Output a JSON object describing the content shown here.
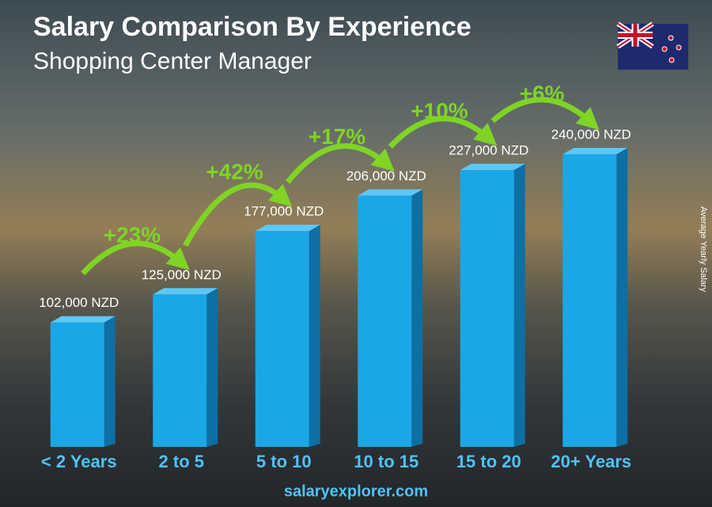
{
  "chart_data": {
    "type": "bar",
    "title": "Salary Comparison By Experience",
    "subtitle": "Shopping Center Manager",
    "y_label": "Average Yearly Salary",
    "categories": [
      "< 2 Years",
      "2 to 5",
      "5 to 10",
      "10 to 15",
      "15 to 20",
      "20+ Years"
    ],
    "values": [
      102000,
      125000,
      177000,
      206000,
      227000,
      240000
    ],
    "value_labels": [
      "102,000 NZD",
      "125,000 NZD",
      "177,000 NZD",
      "206,000 NZD",
      "227,000 NZD",
      "240,000 NZD"
    ],
    "annotations": [
      "+23%",
      "+42%",
      "+17%",
      "+10%",
      "+6%"
    ],
    "color": "#1aa7e6",
    "arrow_color": "#7fd425",
    "footer": "salaryexplorer.com"
  }
}
